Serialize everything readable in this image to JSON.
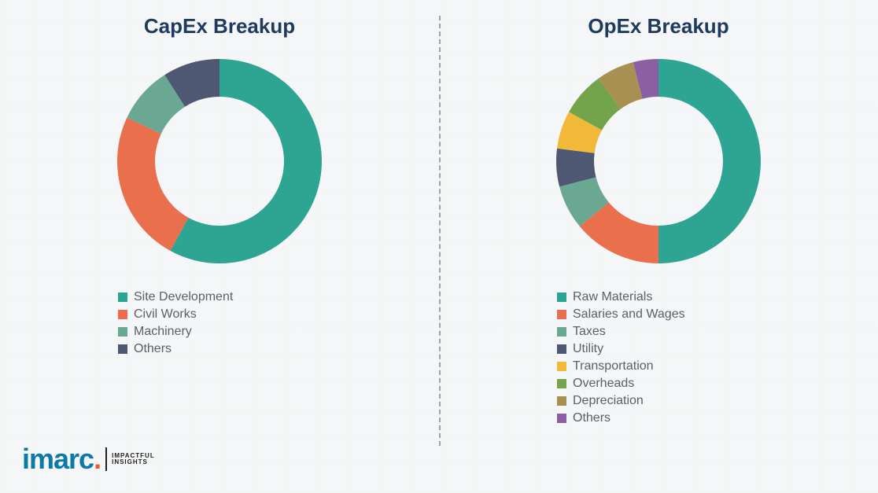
{
  "background_color": "#f4f6f7",
  "divider_color": "#9aa3ab",
  "title_color": "#1f3a5f",
  "legend_text_color": "#5a6068",
  "title_fontsize": 26,
  "legend_fontsize": 16,
  "donut_outer_radius": 130,
  "donut_inner_radius": 82,
  "capex": {
    "title": "CapEx Breakup",
    "type": "donut",
    "slices": [
      {
        "label": "Site Development",
        "value": 58,
        "color": "#2ea592"
      },
      {
        "label": "Civil Works",
        "value": 24,
        "color": "#e96f4d"
      },
      {
        "label": "Machinery",
        "value": 9,
        "color": "#6aa893"
      },
      {
        "label": "Others",
        "value": 9,
        "color": "#4f5873"
      }
    ]
  },
  "opex": {
    "title": "OpEx Breakup",
    "type": "donut",
    "slices": [
      {
        "label": "Raw Materials",
        "value": 50,
        "color": "#2ea592"
      },
      {
        "label": "Salaries and Wages",
        "value": 14,
        "color": "#e96f4d"
      },
      {
        "label": "Taxes",
        "value": 7,
        "color": "#6aa893"
      },
      {
        "label": "Utility",
        "value": 6,
        "color": "#4f5873"
      },
      {
        "label": "Transportation",
        "value": 6,
        "color": "#f2b83a"
      },
      {
        "label": "Overheads",
        "value": 7,
        "color": "#73a34a"
      },
      {
        "label": "Depreciation",
        "value": 6,
        "color": "#a88f52"
      },
      {
        "label": "Others",
        "value": 4,
        "color": "#8b5fa3"
      }
    ]
  },
  "logo": {
    "brand": "imarc",
    "tagline_line1": "IMPACTFUL",
    "tagline_line2": "INSIGHTS",
    "brand_color": "#0b7aa6",
    "dot_color": "#f15a29"
  }
}
